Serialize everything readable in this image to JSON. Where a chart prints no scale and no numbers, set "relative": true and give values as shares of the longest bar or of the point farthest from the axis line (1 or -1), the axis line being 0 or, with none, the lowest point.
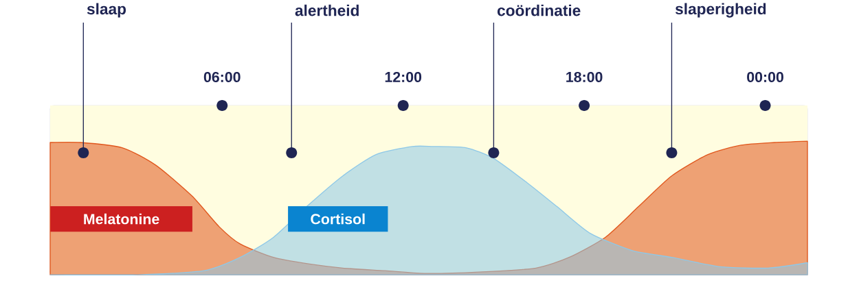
{
  "chart_data": {
    "type": "area",
    "relative": true,
    "legend": false,
    "xlim": [
      0.3,
      25.4
    ],
    "xticks": [
      {
        "value": 6,
        "label": "06:00"
      },
      {
        "value": 12,
        "label": "12:00"
      },
      {
        "value": 18,
        "label": "18:00"
      },
      {
        "value": 24,
        "label": "00:00"
      }
    ],
    "series": [
      {
        "name": "Melatonine",
        "color": "#e0561c",
        "x": [
          0.3,
          1.3,
          2.7,
          3.8,
          5.0,
          5.9,
          6.6,
          7.7,
          8.9,
          10.0,
          11.4,
          12.7,
          14.5,
          16.4,
          17.5,
          18.7,
          19.8,
          20.9,
          22.1,
          23.2,
          24.3,
          25.4
        ],
        "values": [
          0.99,
          0.99,
          0.95,
          0.82,
          0.59,
          0.36,
          0.23,
          0.13,
          0.08,
          0.05,
          0.03,
          0.01,
          0.02,
          0.05,
          0.13,
          0.28,
          0.51,
          0.74,
          0.9,
          0.97,
          0.99,
          1
        ]
      },
      {
        "name": "Cortisol",
        "color": "#8ec8e8",
        "x": [
          0.3,
          3.2,
          5.4,
          6.6,
          7.7,
          8.8,
          10.0,
          11.1,
          12.3,
          13.0,
          14.1,
          15.0,
          16.1,
          17.1,
          18.2,
          19.6,
          20.9,
          22.5,
          24.1,
          25.4
        ],
        "values": [
          0,
          0,
          0.03,
          0.13,
          0.28,
          0.51,
          0.74,
          0.9,
          0.96,
          0.96,
          0.95,
          0.87,
          0.69,
          0.51,
          0.31,
          0.18,
          0.13,
          0.06,
          0.05,
          0.09
        ]
      }
    ],
    "ref_lines": [
      {
        "axis": "x",
        "value": 1.4,
        "label": "slaap"
      },
      {
        "axis": "x",
        "value": 8.3,
        "label": "alertheid"
      },
      {
        "axis": "x",
        "value": 15.0,
        "label": "coördinatie"
      },
      {
        "axis": "x",
        "value": 20.9,
        "label": "slaperigheid"
      }
    ]
  }
}
